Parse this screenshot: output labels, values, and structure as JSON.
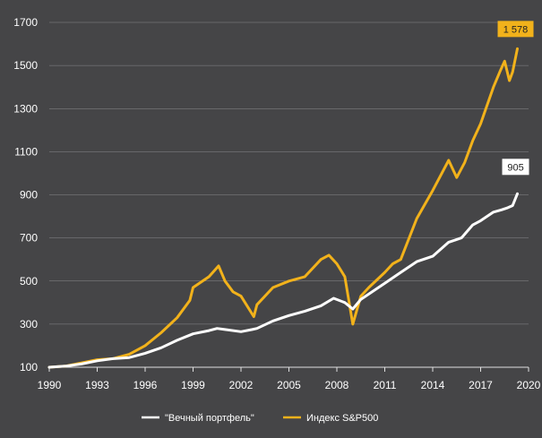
{
  "chart_data": {
    "type": "line",
    "title": "",
    "xlabel": "",
    "ylabel": "",
    "xlim": [
      1990,
      2020
    ],
    "ylim": [
      100,
      1700
    ],
    "x_ticks": [
      1990,
      1993,
      1996,
      1999,
      2002,
      2005,
      2008,
      2011,
      2014,
      2017,
      2020
    ],
    "y_ticks": [
      100,
      300,
      500,
      700,
      900,
      1100,
      1300,
      1500,
      1700
    ],
    "grid": true,
    "legend_position": "bottom-center",
    "background": "#454547",
    "series": [
      {
        "name": "\"Вечный портфель\"",
        "color": "#ffffff",
        "x": [
          1990,
          1991,
          1992,
          1993,
          1994,
          1995,
          1996,
          1997,
          1998,
          1999,
          2000,
          2000.5,
          2001,
          2002,
          2002.7,
          2003,
          2004,
          2005,
          2006,
          2007,
          2007.8,
          2008.5,
          2009,
          2009.5,
          2010,
          2011,
          2012,
          2013,
          2014,
          2015,
          2015.8,
          2016.5,
          2017,
          2017.8,
          2018.3,
          2018.7,
          2019,
          2019.3
        ],
        "values": [
          100,
          105,
          115,
          130,
          140,
          145,
          165,
          190,
          225,
          255,
          270,
          280,
          275,
          265,
          275,
          280,
          315,
          340,
          360,
          385,
          420,
          400,
          370,
          415,
          440,
          490,
          540,
          590,
          615,
          680,
          700,
          760,
          780,
          820,
          830,
          840,
          850,
          905
        ],
        "end_label": "905"
      },
      {
        "name": "Индекс S&P500",
        "color": "#f2b21b",
        "x": [
          1990,
          1991,
          1992,
          1993,
          1994,
          1995,
          1996,
          1997,
          1998,
          1998.8,
          1999,
          2000,
          2000.6,
          2001,
          2001.5,
          2002,
          2002.8,
          2003,
          2004,
          2005,
          2006,
          2007,
          2007.5,
          2008,
          2008.5,
          2009,
          2009.5,
          2010,
          2011,
          2011.5,
          2012,
          2013,
          2014,
          2015,
          2015.5,
          2016,
          2016.5,
          2017,
          2017.8,
          2018.2,
          2018.5,
          2018.8,
          2019,
          2019.3
        ],
        "values": [
          100,
          105,
          120,
          135,
          140,
          160,
          200,
          260,
          330,
          410,
          470,
          520,
          570,
          500,
          450,
          430,
          335,
          390,
          470,
          500,
          520,
          600,
          620,
          580,
          520,
          300,
          430,
          470,
          540,
          580,
          600,
          790,
          920,
          1060,
          980,
          1050,
          1150,
          1230,
          1400,
          1470,
          1520,
          1430,
          1470,
          1578
        ],
        "end_label": "1 578"
      }
    ]
  }
}
